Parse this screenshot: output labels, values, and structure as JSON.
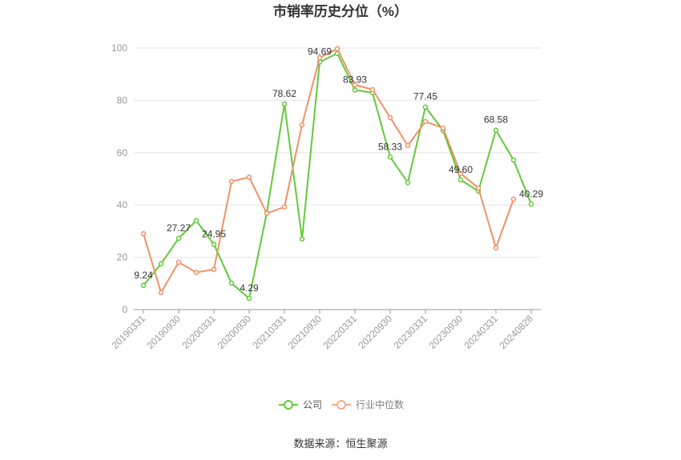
{
  "chart_data": {
    "type": "line",
    "title": "市销率历史分位（%）",
    "categories": [
      "20190331",
      null,
      "20190930",
      null,
      "20200331",
      null,
      "20200930",
      null,
      "20210331",
      null,
      "20210930",
      null,
      "20220331",
      null,
      "20220930",
      null,
      "20230331",
      null,
      "20230930",
      null,
      "20240331",
      null,
      "20240828"
    ],
    "ylim": [
      0,
      100
    ],
    "yticks": [
      0,
      20,
      40,
      60,
      80,
      100
    ],
    "grid": true,
    "legend_position": "bottom",
    "series": [
      {
        "name": "公司",
        "color": "#63c93a",
        "values": [
          9.24,
          17.5,
          27.27,
          34.0,
          24.95,
          10.1,
          4.29,
          37.0,
          78.62,
          27.0,
          94.69,
          97.9,
          83.93,
          82.9,
          58.33,
          48.6,
          77.45,
          68.5,
          49.6,
          45.3,
          68.58,
          57.2,
          40.29
        ],
        "labels": [
          "9.24",
          null,
          "27.27",
          null,
          "24.95",
          null,
          "4.29",
          null,
          "78.62",
          null,
          "94.69",
          null,
          "83.93",
          null,
          "58.33",
          null,
          "77.45",
          null,
          "49.60",
          null,
          "68.58",
          null,
          "40.29"
        ]
      },
      {
        "name": "行业中位数",
        "color": "#f19166",
        "values": [
          29.0,
          6.5,
          18.1,
          14.2,
          15.4,
          49.0,
          50.6,
          36.8,
          39.2,
          70.6,
          96.3,
          99.7,
          85.9,
          84.1,
          73.4,
          62.7,
          71.9,
          69.4,
          52.0,
          46.5,
          23.6,
          42.2,
          null
        ]
      }
    ]
  },
  "source": "数据来源：恒生聚源"
}
